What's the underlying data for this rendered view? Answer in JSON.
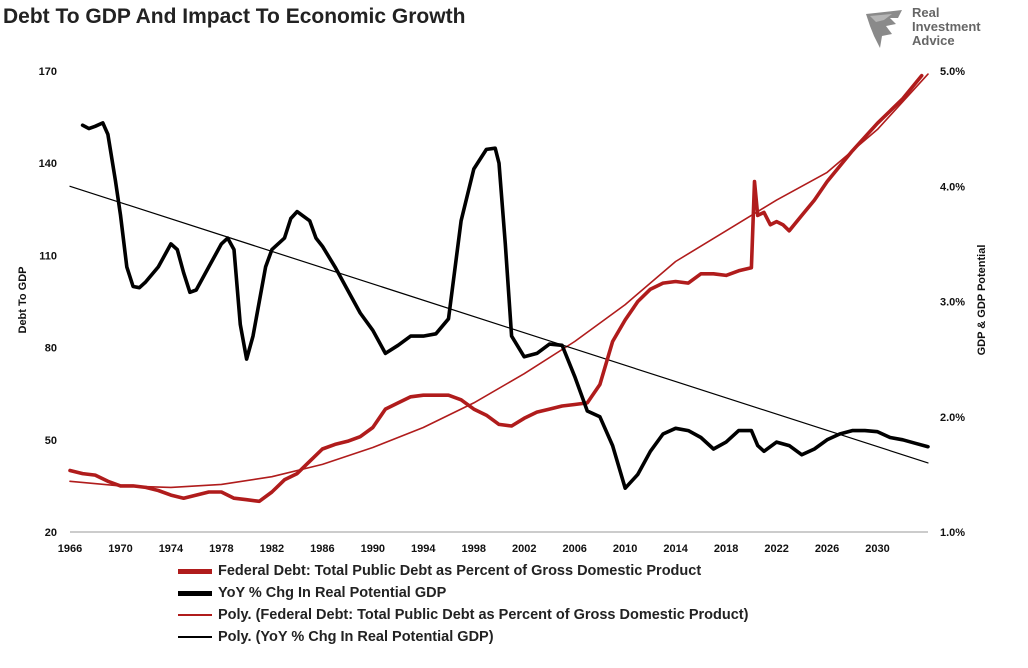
{
  "chart_data": {
    "type": "line",
    "title": "Debt To GDP And Impact To Economic Growth",
    "logo_text": [
      "Real",
      "Investment",
      "Advice"
    ],
    "xlabel": "",
    "ylabel_left": "Debt To GDP",
    "ylabel_right": "GDP & GDP Potential",
    "xlim": [
      1966,
      2034
    ],
    "ylim_left": [
      20,
      170
    ],
    "ylim_right": [
      1.0,
      5.0
    ],
    "x_ticks": [
      "1966",
      "1970",
      "1974",
      "1978",
      "1982",
      "1986",
      "1990",
      "1994",
      "1998",
      "2002",
      "2006",
      "2010",
      "2014",
      "2018",
      "2022",
      "2026",
      "2030"
    ],
    "y_ticks_left": [
      "20",
      "50",
      "80",
      "110",
      "140",
      "170"
    ],
    "y_ticks_right": [
      "1.0%",
      "2.0%",
      "3.0%",
      "4.0%",
      "5.0%"
    ],
    "grid": false,
    "legend_position": "bottom",
    "colors": {
      "debt": "#b01c1c",
      "gdp": "#000000"
    },
    "series": [
      {
        "name": "Federal Debt: Total Public Debt as Percent of Gross Domestic Product",
        "axis": "left",
        "style": "thick",
        "points": [
          [
            1966,
            40
          ],
          [
            1967,
            39
          ],
          [
            1968,
            38.5
          ],
          [
            1969,
            36.5
          ],
          [
            1970,
            35
          ],
          [
            1971,
            35
          ],
          [
            1972,
            34.5
          ],
          [
            1973,
            33.5
          ],
          [
            1974,
            32
          ],
          [
            1975,
            31
          ],
          [
            1976,
            32
          ],
          [
            1977,
            33
          ],
          [
            1978,
            33
          ],
          [
            1979,
            31
          ],
          [
            1980,
            30.5
          ],
          [
            1981,
            30
          ],
          [
            1982,
            33
          ],
          [
            1983,
            37
          ],
          [
            1984,
            39
          ],
          [
            1985,
            43
          ],
          [
            1986,
            47
          ],
          [
            1987,
            48.5
          ],
          [
            1988,
            49.5
          ],
          [
            1989,
            51
          ],
          [
            1990,
            54
          ],
          [
            1991,
            60
          ],
          [
            1992,
            62
          ],
          [
            1993,
            64
          ],
          [
            1994,
            64.5
          ],
          [
            1995,
            64.5
          ],
          [
            1996,
            64.5
          ],
          [
            1997,
            63
          ],
          [
            1998,
            60
          ],
          [
            1999,
            58
          ],
          [
            2000,
            55
          ],
          [
            2001,
            54.5
          ],
          [
            2002,
            57
          ],
          [
            2003,
            59
          ],
          [
            2004,
            60
          ],
          [
            2005,
            61
          ],
          [
            2006,
            61.5
          ],
          [
            2007,
            62
          ],
          [
            2008,
            68
          ],
          [
            2009,
            82
          ],
          [
            2010,
            89
          ],
          [
            2011,
            95
          ],
          [
            2012,
            99
          ],
          [
            2013,
            101
          ],
          [
            2014,
            101.5
          ],
          [
            2015,
            101
          ],
          [
            2016,
            104
          ],
          [
            2017,
            104
          ],
          [
            2018,
            103.5
          ],
          [
            2019,
            105
          ],
          [
            2020,
            106
          ],
          [
            2020.25,
            134
          ],
          [
            2020.5,
            123
          ],
          [
            2021,
            124
          ],
          [
            2021.5,
            120
          ],
          [
            2022,
            121
          ],
          [
            2022.5,
            120
          ],
          [
            2023,
            118
          ],
          [
            2024,
            123
          ],
          [
            2025,
            128
          ],
          [
            2026,
            134
          ],
          [
            2028,
            144
          ],
          [
            2030,
            153
          ],
          [
            2032,
            161
          ],
          [
            2033.5,
            168.5
          ]
        ]
      },
      {
        "name": "YoY % Chg In Real Potential GDP",
        "axis": "right",
        "style": "thick",
        "points": [
          [
            1967,
            4.53
          ],
          [
            1967.5,
            4.5
          ],
          [
            1968,
            4.52
          ],
          [
            1968.6,
            4.55
          ],
          [
            1969,
            4.45
          ],
          [
            1969.6,
            4.05
          ],
          [
            1970,
            3.75
          ],
          [
            1970.5,
            3.3
          ],
          [
            1971,
            3.13
          ],
          [
            1971.5,
            3.12
          ],
          [
            1972,
            3.17
          ],
          [
            1973,
            3.3
          ],
          [
            1974,
            3.5
          ],
          [
            1974.5,
            3.45
          ],
          [
            1975,
            3.25
          ],
          [
            1975.5,
            3.08
          ],
          [
            1976,
            3.1
          ],
          [
            1977,
            3.3
          ],
          [
            1978,
            3.5
          ],
          [
            1978.5,
            3.55
          ],
          [
            1979,
            3.45
          ],
          [
            1979.5,
            2.8
          ],
          [
            1980,
            2.5
          ],
          [
            1980.5,
            2.7
          ],
          [
            1981,
            3.0
          ],
          [
            1981.5,
            3.3
          ],
          [
            1982,
            3.45
          ],
          [
            1983,
            3.55
          ],
          [
            1983.5,
            3.72
          ],
          [
            1984,
            3.78
          ],
          [
            1985,
            3.7
          ],
          [
            1985.5,
            3.55
          ],
          [
            1986,
            3.48
          ],
          [
            1987,
            3.3
          ],
          [
            1988,
            3.1
          ],
          [
            1989,
            2.9
          ],
          [
            1990,
            2.75
          ],
          [
            1991,
            2.55
          ],
          [
            1992,
            2.62
          ],
          [
            1993,
            2.7
          ],
          [
            1994,
            2.7
          ],
          [
            1995,
            2.72
          ],
          [
            1996,
            2.85
          ],
          [
            1997,
            3.7
          ],
          [
            1998,
            4.15
          ],
          [
            1999,
            4.32
          ],
          [
            1999.7,
            4.33
          ],
          [
            2000,
            4.2
          ],
          [
            2000.5,
            3.5
          ],
          [
            2001,
            2.7
          ],
          [
            2002,
            2.52
          ],
          [
            2003,
            2.55
          ],
          [
            2004,
            2.63
          ],
          [
            2005,
            2.62
          ],
          [
            2006,
            2.35
          ],
          [
            2007,
            2.05
          ],
          [
            2008,
            2.0
          ],
          [
            2009,
            1.75
          ],
          [
            2010,
            1.38
          ],
          [
            2011,
            1.5
          ],
          [
            2012,
            1.7
          ],
          [
            2013,
            1.85
          ],
          [
            2014,
            1.9
          ],
          [
            2015,
            1.88
          ],
          [
            2016,
            1.82
          ],
          [
            2017,
            1.72
          ],
          [
            2018,
            1.78
          ],
          [
            2019,
            1.88
          ],
          [
            2020,
            1.88
          ],
          [
            2020.5,
            1.75
          ],
          [
            2021,
            1.7
          ],
          [
            2022,
            1.78
          ],
          [
            2023,
            1.75
          ],
          [
            2024,
            1.67
          ],
          [
            2025,
            1.72
          ],
          [
            2026,
            1.8
          ],
          [
            2027,
            1.85
          ],
          [
            2028,
            1.88
          ],
          [
            2029,
            1.88
          ],
          [
            2030,
            1.87
          ],
          [
            2031,
            1.82
          ],
          [
            2032,
            1.8
          ],
          [
            2033,
            1.77
          ],
          [
            2034,
            1.74
          ]
        ]
      },
      {
        "name": "Poly. (Federal Debt: Total Public Debt as Percent of Gross Domestic Product)",
        "axis": "left",
        "style": "thin",
        "points": [
          [
            1966,
            36.5
          ],
          [
            1970,
            35
          ],
          [
            1974,
            34.5
          ],
          [
            1978,
            35.5
          ],
          [
            1982,
            38
          ],
          [
            1986,
            42
          ],
          [
            1990,
            47.5
          ],
          [
            1994,
            54
          ],
          [
            1998,
            62
          ],
          [
            2002,
            71.5
          ],
          [
            2006,
            82
          ],
          [
            2010,
            94
          ],
          [
            2014,
            108
          ],
          [
            2018,
            118
          ],
          [
            2022,
            128
          ],
          [
            2026,
            137
          ],
          [
            2030,
            151
          ],
          [
            2034,
            169
          ]
        ]
      },
      {
        "name": "Poly. (YoY % Chg In Real Potential GDP)",
        "axis": "right",
        "style": "thin",
        "points": [
          [
            1966,
            4.0
          ],
          [
            2034,
            1.6
          ]
        ]
      }
    ]
  }
}
